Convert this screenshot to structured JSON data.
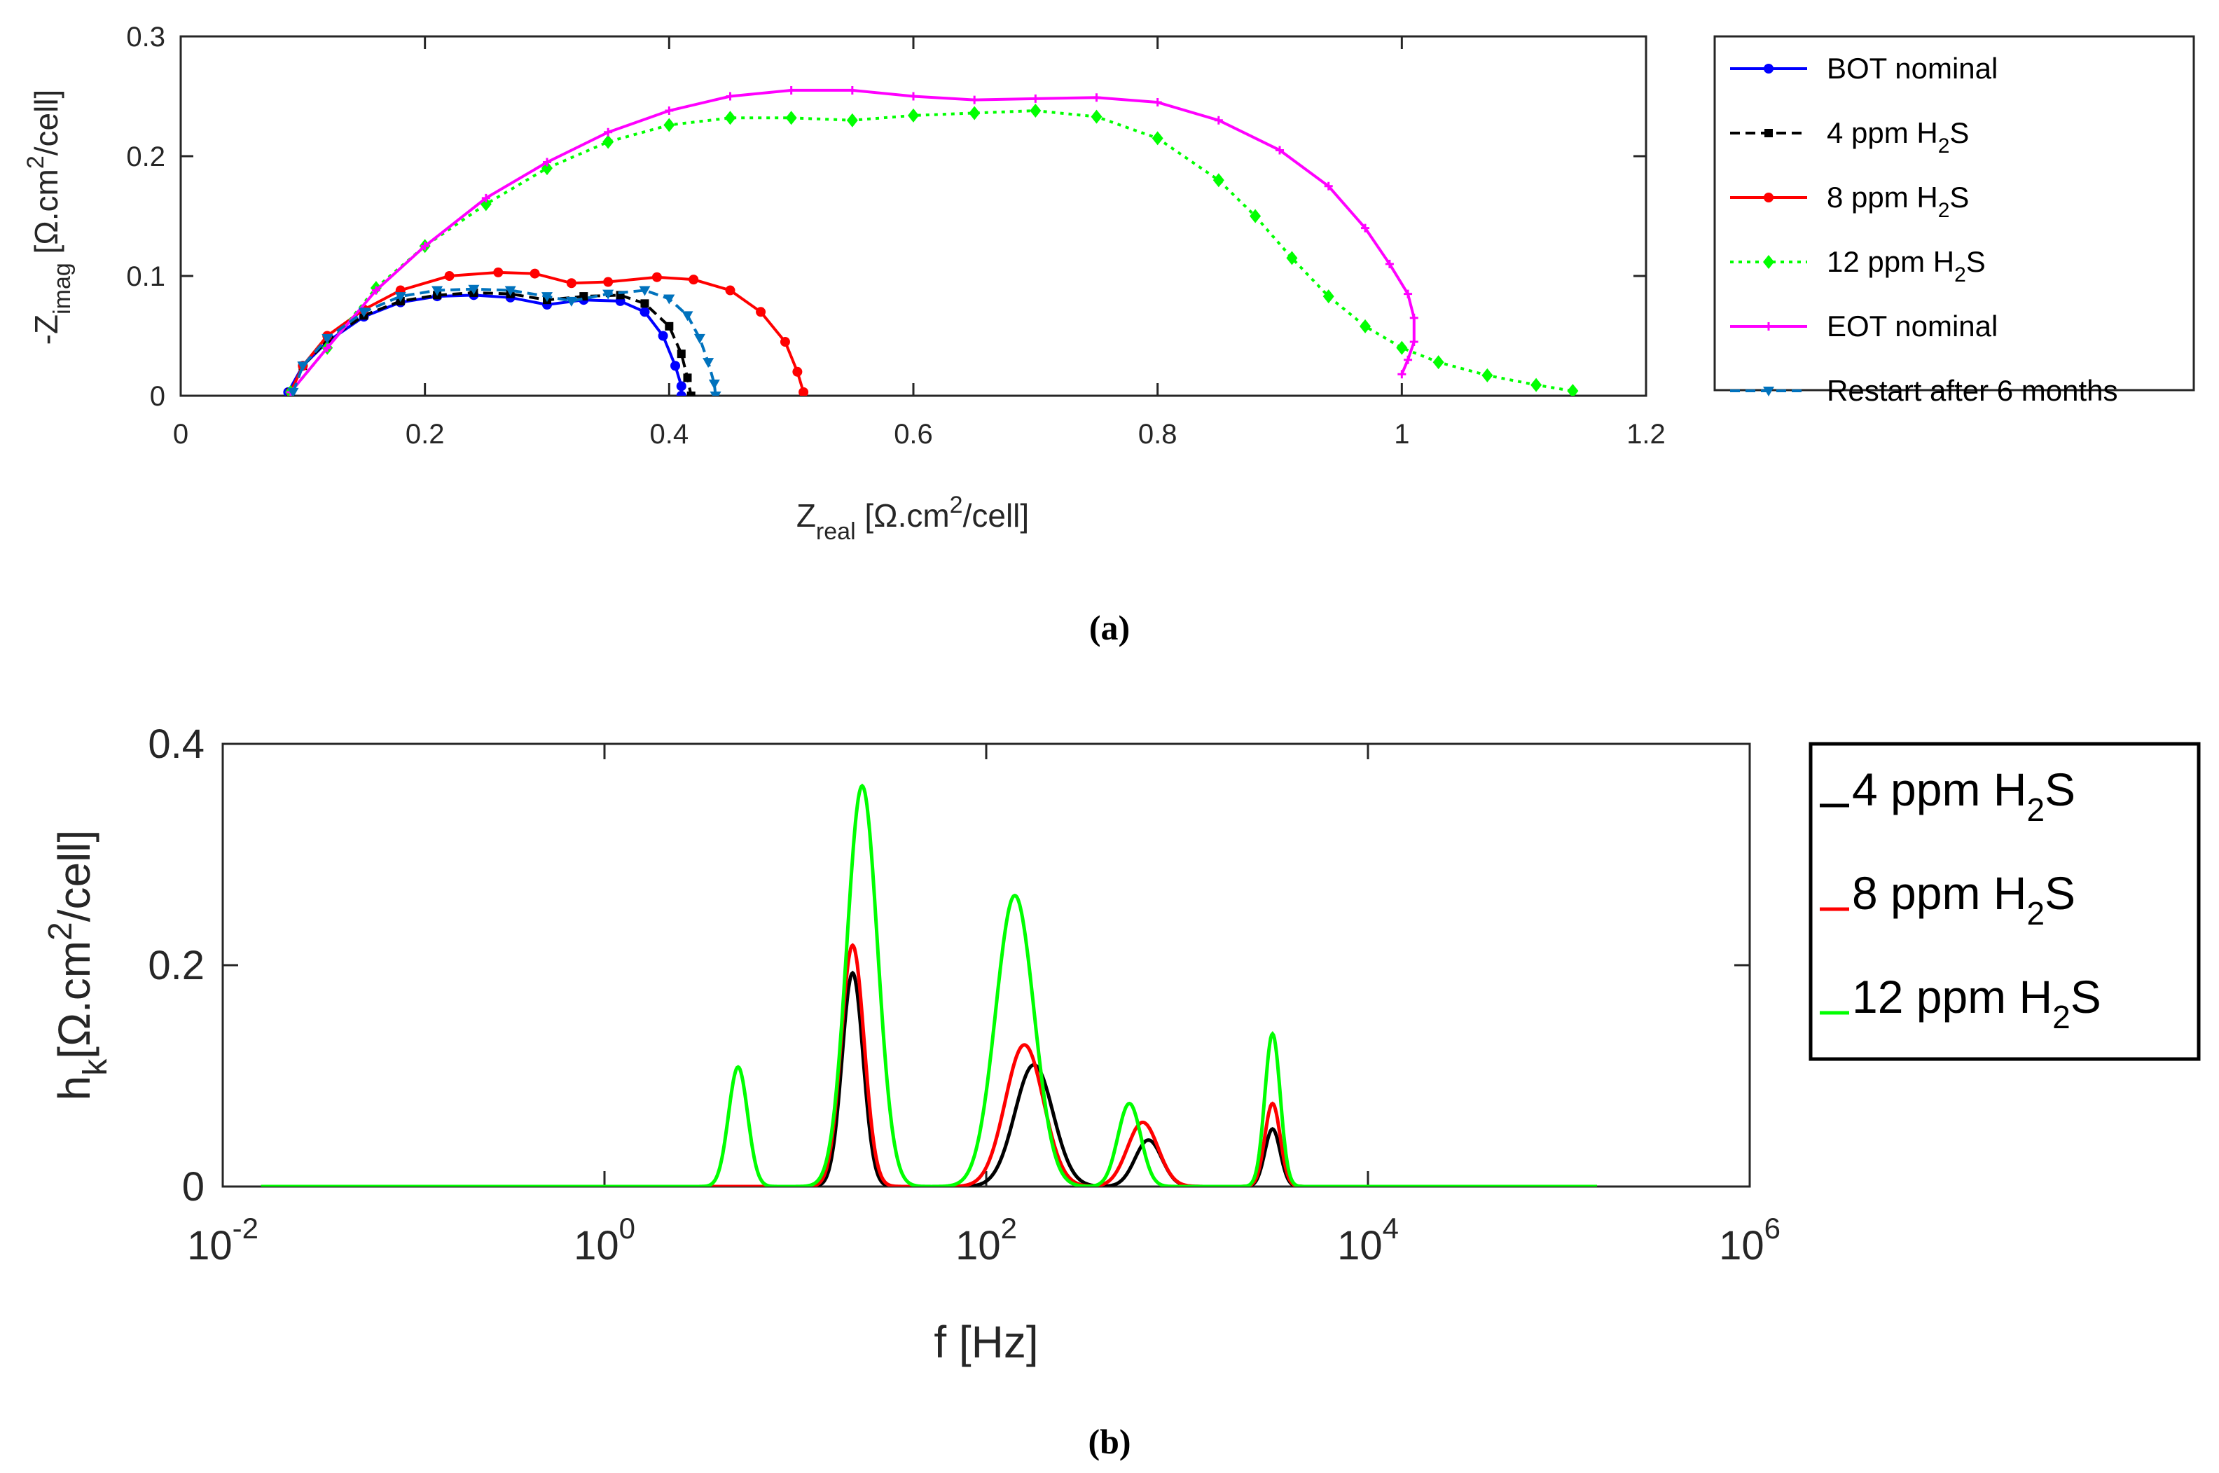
{
  "chart_data": [
    {
      "type": "line",
      "panel": "a",
      "caption": "(a)",
      "xlabel": "Z",
      "xlabel_sub": "real",
      "xlabel_unit_pre": " [Ω.cm",
      "xlabel_unit_sup": "2",
      "xlabel_unit_post": "/cell]",
      "ylabel": "-Z",
      "ylabel_sub": "imag",
      "ylabel_unit_pre": " [Ω.cm",
      "ylabel_unit_sup": "2",
      "ylabel_unit_post": "/cell]",
      "xlim": [
        0,
        1.2
      ],
      "ylim": [
        0,
        0.3
      ],
      "xticks": [
        "0",
        "0.2",
        "0.4",
        "0.6",
        "0.8",
        "1",
        "1.2"
      ],
      "xtick_values": [
        0,
        0.2,
        0.4,
        0.6,
        0.8,
        1.0,
        1.2
      ],
      "yticks": [
        "0",
        "0.1",
        "0.2",
        "0.3"
      ],
      "ytick_values": [
        0,
        0.1,
        0.2,
        0.3
      ],
      "legend_position": "outside-right",
      "series": [
        {
          "name": "BOT nominal",
          "name_main": "BOT nominal",
          "name_sub": "",
          "name_post": "",
          "color": "#0000ff",
          "dash": "",
          "marker": "circle",
          "x": [
            0.088,
            0.1,
            0.12,
            0.15,
            0.18,
            0.21,
            0.24,
            0.27,
            0.3,
            0.33,
            0.36,
            0.38,
            0.395,
            0.405,
            0.41,
            0.41
          ],
          "y": [
            0.003,
            0.025,
            0.045,
            0.066,
            0.078,
            0.083,
            0.084,
            0.082,
            0.076,
            0.08,
            0.079,
            0.07,
            0.05,
            0.025,
            0.008,
            0.0
          ]
        },
        {
          "name": "4 ppm H2S",
          "name_main": "4 ppm H",
          "name_sub": "2",
          "name_post": "S",
          "color": "#000000",
          "dash": "14,8",
          "marker": "square",
          "x": [
            0.09,
            0.1,
            0.12,
            0.15,
            0.18,
            0.21,
            0.24,
            0.27,
            0.3,
            0.33,
            0.36,
            0.38,
            0.4,
            0.41,
            0.415,
            0.418
          ],
          "y": [
            0.003,
            0.025,
            0.046,
            0.067,
            0.079,
            0.084,
            0.086,
            0.085,
            0.08,
            0.083,
            0.084,
            0.077,
            0.058,
            0.035,
            0.015,
            0.0
          ]
        },
        {
          "name": "8 ppm H2S",
          "name_main": "8 ppm H",
          "name_sub": "2",
          "name_post": "S",
          "color": "#ff0000",
          "dash": "",
          "marker": "circle",
          "x": [
            0.09,
            0.1,
            0.12,
            0.15,
            0.18,
            0.22,
            0.26,
            0.29,
            0.32,
            0.35,
            0.39,
            0.42,
            0.45,
            0.475,
            0.495,
            0.505,
            0.51
          ],
          "y": [
            0.003,
            0.025,
            0.05,
            0.072,
            0.088,
            0.1,
            0.103,
            0.102,
            0.094,
            0.095,
            0.099,
            0.097,
            0.088,
            0.07,
            0.045,
            0.02,
            0.003
          ]
        },
        {
          "name": "12 ppm H2S",
          "name_main": "12 ppm H",
          "name_sub": "2",
          "name_post": "S",
          "color": "#00ff00",
          "dash": "5,7",
          "marker": "diamond",
          "x": [
            0.09,
            0.12,
            0.16,
            0.2,
            0.25,
            0.3,
            0.35,
            0.4,
            0.45,
            0.5,
            0.55,
            0.6,
            0.65,
            0.7,
            0.75,
            0.8,
            0.85,
            0.88,
            0.91,
            0.94,
            0.97,
            1.0,
            1.03,
            1.07,
            1.11,
            1.14
          ],
          "y": [
            0.003,
            0.04,
            0.09,
            0.125,
            0.16,
            0.19,
            0.212,
            0.226,
            0.232,
            0.232,
            0.23,
            0.234,
            0.236,
            0.238,
            0.233,
            0.215,
            0.18,
            0.15,
            0.115,
            0.083,
            0.058,
            0.04,
            0.028,
            0.017,
            0.009,
            0.004
          ]
        },
        {
          "name": "EOT nominal",
          "name_main": "EOT nominal",
          "name_sub": "",
          "name_post": "",
          "color": "#ff00ff",
          "dash": "",
          "marker": "plus",
          "x": [
            0.09,
            0.12,
            0.16,
            0.2,
            0.25,
            0.3,
            0.35,
            0.4,
            0.45,
            0.5,
            0.55,
            0.6,
            0.65,
            0.7,
            0.75,
            0.8,
            0.85,
            0.9,
            0.94,
            0.97,
            0.99,
            1.005,
            1.01,
            1.01,
            1.005,
            1.0
          ],
          "y": [
            0.003,
            0.04,
            0.088,
            0.125,
            0.165,
            0.195,
            0.22,
            0.238,
            0.25,
            0.255,
            0.255,
            0.25,
            0.247,
            0.248,
            0.249,
            0.245,
            0.23,
            0.205,
            0.175,
            0.14,
            0.11,
            0.085,
            0.065,
            0.045,
            0.03,
            0.018
          ]
        },
        {
          "name": "Restart after 6 months",
          "name_main": "Restart after 6 months",
          "name_sub": "",
          "name_post": "",
          "color": "#0072bd",
          "dash": "14,8",
          "marker": "triangle-down",
          "x": [
            0.092,
            0.1,
            0.12,
            0.15,
            0.18,
            0.21,
            0.24,
            0.27,
            0.3,
            0.32,
            0.35,
            0.38,
            0.4,
            0.415,
            0.425,
            0.432,
            0.437,
            0.438
          ],
          "y": [
            0.003,
            0.025,
            0.048,
            0.07,
            0.083,
            0.088,
            0.089,
            0.088,
            0.083,
            0.079,
            0.085,
            0.088,
            0.081,
            0.067,
            0.048,
            0.028,
            0.01,
            0.0
          ]
        }
      ]
    },
    {
      "type": "line",
      "panel": "b",
      "caption": "(b)",
      "xscale": "log",
      "xlabel": "f [Hz]",
      "ylabel": "h",
      "ylabel_sub": "k",
      "ylabel_unit_pre": "[Ω.cm",
      "ylabel_unit_sup": "2",
      "ylabel_unit_post": "/cell]",
      "xlim_log10": [
        -2,
        6
      ],
      "ylim": [
        0,
        0.4
      ],
      "xtick_bases": [
        "10",
        "10",
        "10",
        "10",
        "10"
      ],
      "xtick_exponents": [
        "-2",
        "0",
        "2",
        "4",
        "6"
      ],
      "xtick_log10": [
        -2,
        0,
        2,
        4,
        6
      ],
      "yticks": [
        "0",
        "0.2",
        "0.4"
      ],
      "ytick_values": [
        0,
        0.2,
        0.4
      ],
      "x_range_log10": [
        -1.8,
        5.2
      ],
      "legend_position": "outside-right",
      "series": [
        {
          "name": "4 ppm H2S",
          "name_main": "4 ppm H",
          "name_sub": "2",
          "name_post": "S",
          "color": "#000000",
          "peaks_log10f": [
            1.3,
            2.25,
            2.85,
            3.5
          ],
          "peaks_amp": [
            0.193,
            0.11,
            0.042,
            0.052
          ],
          "peaks_width": [
            0.055,
            0.1,
            0.07,
            0.04
          ]
        },
        {
          "name": "8 ppm H2S",
          "name_main": "8 ppm H",
          "name_sub": "2",
          "name_post": "S",
          "color": "#ff0000",
          "peaks_log10f": [
            1.3,
            2.2,
            2.82,
            3.5
          ],
          "peaks_amp": [
            0.218,
            0.128,
            0.058,
            0.075
          ],
          "peaks_width": [
            0.06,
            0.1,
            0.08,
            0.04
          ]
        },
        {
          "name": "12 ppm H2S",
          "name_main": "12 ppm H",
          "name_sub": "2",
          "name_post": "S",
          "color": "#00ff00",
          "peaks_log10f": [
            0.7,
            1.35,
            2.15,
            2.75,
            3.5
          ],
          "peaks_amp": [
            0.108,
            0.362,
            0.263,
            0.075,
            0.138
          ],
          "peaks_width": [
            0.05,
            0.08,
            0.1,
            0.06,
            0.04
          ]
        }
      ]
    }
  ]
}
